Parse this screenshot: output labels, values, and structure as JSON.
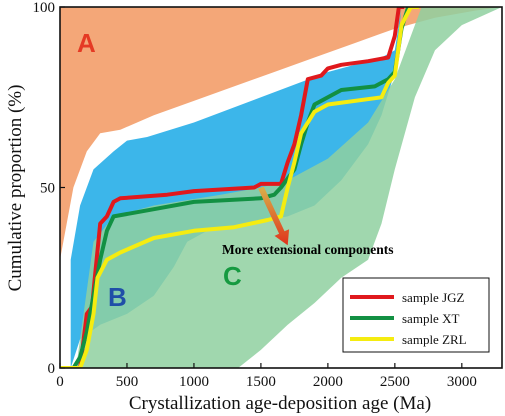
{
  "chart_data": {
    "type": "line",
    "xlabel": "Crystallization age-deposition age (Ma)",
    "ylabel": "Cumulative proportion (%)",
    "xlim": [
      0,
      3300
    ],
    "ylim": [
      0,
      100
    ],
    "x_ticks": [
      "0",
      "500",
      "1000",
      "1500",
      "2000",
      "2500",
      "3000"
    ],
    "y_ticks": [
      "0",
      "50",
      "100"
    ],
    "grid": false,
    "legend_position": "bottom-right",
    "zones": [
      {
        "label": "A",
        "label_color": "#e53a24",
        "fill": "#f08a4b",
        "opacity": 0.75,
        "upper": [
          [
            0,
            100
          ],
          [
            3300,
            100
          ]
        ],
        "lower": [
          [
            0,
            30
          ],
          [
            100,
            50
          ],
          [
            200,
            60
          ],
          [
            300,
            65
          ],
          [
            450,
            66
          ],
          [
            700,
            70
          ],
          [
            1000,
            74
          ],
          [
            1300,
            78
          ],
          [
            1600,
            82
          ],
          [
            1900,
            86
          ],
          [
            2200,
            90
          ],
          [
            2500,
            94
          ],
          [
            2800,
            97
          ],
          [
            3100,
            99
          ],
          [
            3300,
            100
          ]
        ]
      },
      {
        "label": "B",
        "label_color": "#1f4fa8",
        "fill": "#1aa9e6",
        "opacity": 0.85,
        "upper": [
          [
            80,
            30
          ],
          [
            150,
            45
          ],
          [
            250,
            55
          ],
          [
            400,
            60
          ],
          [
            500,
            63
          ],
          [
            650,
            64
          ],
          [
            1000,
            68
          ],
          [
            1500,
            75
          ],
          [
            2000,
            82
          ],
          [
            2400,
            86
          ],
          [
            2500,
            88
          ],
          [
            2550,
            100
          ]
        ],
        "lower": [
          [
            80,
            0
          ],
          [
            150,
            8
          ],
          [
            300,
            12
          ],
          [
            500,
            15
          ],
          [
            700,
            20
          ],
          [
            850,
            28
          ],
          [
            950,
            35
          ],
          [
            1100,
            38
          ],
          [
            1400,
            40
          ],
          [
            1700,
            42
          ],
          [
            1900,
            45
          ],
          [
            2100,
            52
          ],
          [
            2300,
            62
          ],
          [
            2400,
            70
          ],
          [
            2500,
            82
          ],
          [
            2550,
            100
          ]
        ]
      },
      {
        "label": "C",
        "label_color": "#169a41",
        "fill": "#8fd0a0",
        "opacity": 0.85,
        "upper": [
          [
            120,
            0
          ],
          [
            250,
            35
          ],
          [
            400,
            42
          ],
          [
            700,
            45
          ],
          [
            1200,
            48
          ],
          [
            1500,
            50
          ],
          [
            1700,
            52
          ],
          [
            2000,
            58
          ],
          [
            2300,
            68
          ],
          [
            2500,
            80
          ],
          [
            2600,
            90
          ],
          [
            2700,
            100
          ]
        ],
        "lower": [
          [
            1330,
            0
          ],
          [
            1500,
            5
          ],
          [
            1700,
            12
          ],
          [
            1900,
            18
          ],
          [
            2100,
            25
          ],
          [
            2300,
            30
          ],
          [
            2400,
            40
          ],
          [
            2500,
            55
          ],
          [
            2650,
            75
          ],
          [
            2800,
            88
          ],
          [
            3000,
            95
          ],
          [
            3300,
            100
          ]
        ]
      }
    ],
    "series": [
      {
        "name": "sample JGZ",
        "color": "#e0191d",
        "points": [
          [
            0,
            0
          ],
          [
            150,
            0
          ],
          [
            200,
            15
          ],
          [
            240,
            17
          ],
          [
            260,
            25
          ],
          [
            300,
            40
          ],
          [
            350,
            42
          ],
          [
            400,
            46
          ],
          [
            450,
            47
          ],
          [
            800,
            48
          ],
          [
            1000,
            49
          ],
          [
            1450,
            50
          ],
          [
            1500,
            51
          ],
          [
            1650,
            51
          ],
          [
            1700,
            57
          ],
          [
            1750,
            62
          ],
          [
            1800,
            70
          ],
          [
            1850,
            80
          ],
          [
            1950,
            81
          ],
          [
            2000,
            83
          ],
          [
            2100,
            84
          ],
          [
            2300,
            85
          ],
          [
            2450,
            86
          ],
          [
            2500,
            92
          ],
          [
            2530,
            100
          ],
          [
            2570,
            100
          ]
        ]
      },
      {
        "name": "sample XT",
        "color": "#129043",
        "points": [
          [
            0,
            0
          ],
          [
            100,
            0
          ],
          [
            150,
            3
          ],
          [
            200,
            10
          ],
          [
            250,
            20
          ],
          [
            300,
            30
          ],
          [
            350,
            38
          ],
          [
            400,
            42
          ],
          [
            700,
            44
          ],
          [
            1000,
            46
          ],
          [
            1500,
            47
          ],
          [
            1600,
            48
          ],
          [
            1650,
            50
          ],
          [
            1750,
            55
          ],
          [
            1800,
            62
          ],
          [
            1850,
            68
          ],
          [
            1900,
            73
          ],
          [
            2000,
            75
          ],
          [
            2100,
            77
          ],
          [
            2350,
            78
          ],
          [
            2450,
            80
          ],
          [
            2500,
            82
          ],
          [
            2550,
            94
          ],
          [
            2600,
            100
          ],
          [
            2650,
            100
          ]
        ]
      },
      {
        "name": "sample ZRL",
        "color": "#f5ec10",
        "points": [
          [
            0,
            0
          ],
          [
            150,
            0
          ],
          [
            200,
            5
          ],
          [
            250,
            15
          ],
          [
            280,
            25
          ],
          [
            350,
            30
          ],
          [
            450,
            32
          ],
          [
            700,
            36
          ],
          [
            1000,
            38
          ],
          [
            1300,
            39
          ],
          [
            1550,
            41
          ],
          [
            1650,
            42
          ],
          [
            1700,
            50
          ],
          [
            1750,
            57
          ],
          [
            1800,
            65
          ],
          [
            1900,
            71
          ],
          [
            2000,
            73
          ],
          [
            2400,
            75
          ],
          [
            2450,
            79
          ],
          [
            2500,
            81
          ],
          [
            2550,
            95
          ],
          [
            2620,
            100
          ],
          [
            2680,
            100
          ]
        ]
      }
    ],
    "annotations": [
      {
        "text": "More extensional components",
        "from": [
          1500,
          50
        ],
        "to": [
          1700,
          34
        ]
      }
    ]
  }
}
